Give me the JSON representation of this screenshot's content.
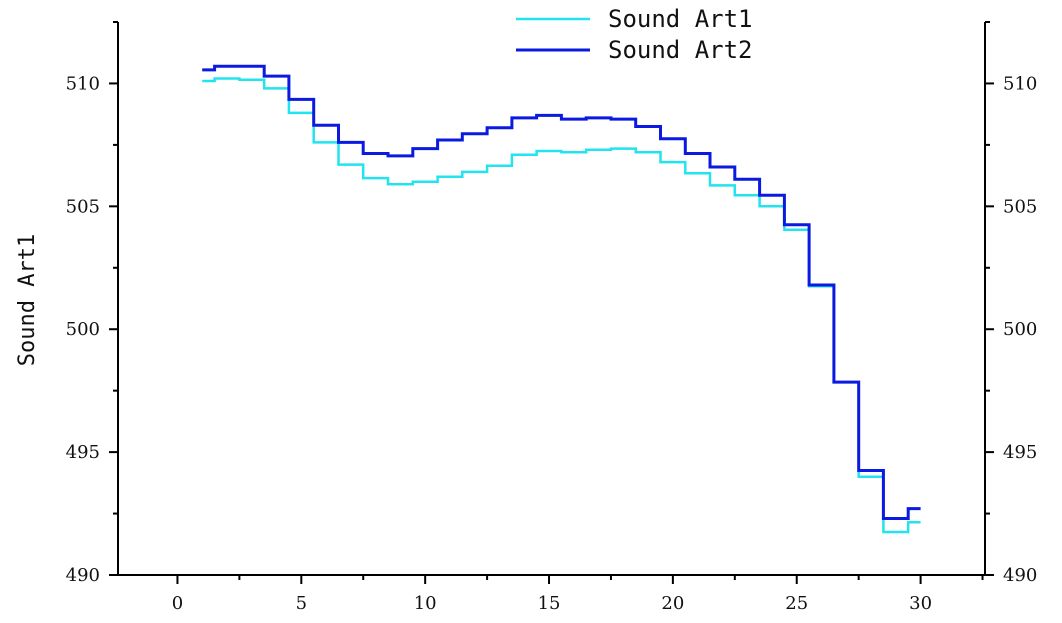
{
  "chart_data": {
    "type": "line",
    "step": true,
    "title": "",
    "xlabel": "",
    "ylabel": "Sound Art1",
    "xlim": [
      -2.4,
      32.6
    ],
    "ylim": [
      490,
      512.5
    ],
    "xticks": [
      0,
      5,
      10,
      15,
      20,
      25,
      30
    ],
    "xtick_labels": [
      "0",
      "5",
      "10",
      "15",
      "20",
      "25",
      "30"
    ],
    "yticks": [
      490,
      495,
      500,
      505,
      510
    ],
    "ytick_labels": [
      "490",
      "495",
      "500",
      "505",
      "510"
    ],
    "right_axis": true,
    "grid": false,
    "legend_position": "top-center",
    "x": [
      1,
      2,
      3,
      4,
      5,
      6,
      7,
      8,
      9,
      10,
      11,
      12,
      13,
      14,
      15,
      16,
      17,
      18,
      19,
      20,
      21,
      22,
      23,
      24,
      25,
      26,
      27,
      28,
      29,
      30
    ],
    "series": [
      {
        "name": "Sound Art1",
        "color": "#22e4ee",
        "values": [
          510.1,
          510.2,
          510.15,
          509.8,
          508.8,
          507.6,
          506.7,
          506.15,
          505.9,
          506.0,
          506.2,
          506.4,
          506.65,
          507.1,
          507.25,
          507.2,
          507.3,
          507.35,
          507.2,
          506.8,
          506.35,
          505.85,
          505.45,
          505.0,
          504.05,
          501.75,
          497.85,
          494.0,
          491.75,
          492.15
        ]
      },
      {
        "name": "Sound Art2",
        "color": "#0a1ae0",
        "values": [
          510.55,
          510.7,
          510.7,
          510.3,
          509.35,
          508.3,
          507.6,
          507.15,
          507.05,
          507.35,
          507.7,
          507.95,
          508.2,
          508.6,
          508.7,
          508.55,
          508.6,
          508.55,
          508.25,
          507.75,
          507.15,
          506.6,
          506.1,
          505.45,
          504.25,
          501.8,
          497.85,
          494.25,
          492.3,
          492.7
        ]
      }
    ]
  }
}
